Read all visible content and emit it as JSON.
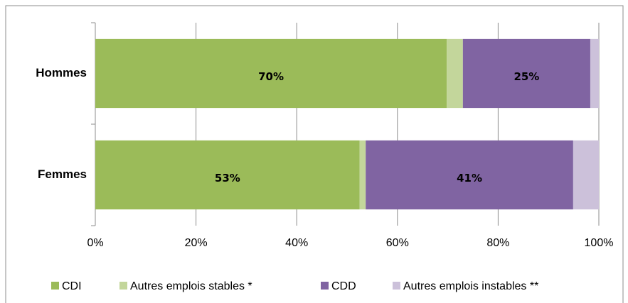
{
  "chart_data": {
    "type": "stacked_barh",
    "categories": [
      "Hommes",
      "Femmes"
    ],
    "series": [
      {
        "name": "CDI",
        "color": "#9bbb59",
        "values": [
          69.8,
          52.5
        ],
        "value_labels": [
          "70%",
          "53%"
        ]
      },
      {
        "name": "Autres emplois stables *",
        "color": "#c3d69b",
        "values": [
          3.2,
          1.2
        ]
      },
      {
        "name": "CDD",
        "color": "#8064a2",
        "values": [
          25.3,
          41.2
        ],
        "value_labels": [
          "25%",
          "41%"
        ]
      },
      {
        "name": "Autres emplois instables **",
        "color": "#ccc1da",
        "values": [
          1.7,
          5.1
        ]
      }
    ],
    "xlim": [
      0,
      100
    ],
    "xticks": [
      {
        "value": 0,
        "label": "0%"
      },
      {
        "value": 20,
        "label": "20%"
      },
      {
        "value": 40,
        "label": "40%"
      },
      {
        "value": 60,
        "label": "60%"
      },
      {
        "value": 80,
        "label": "80%"
      },
      {
        "value": 100,
        "label": "100%"
      }
    ],
    "grid": true,
    "legend": "bottom"
  }
}
